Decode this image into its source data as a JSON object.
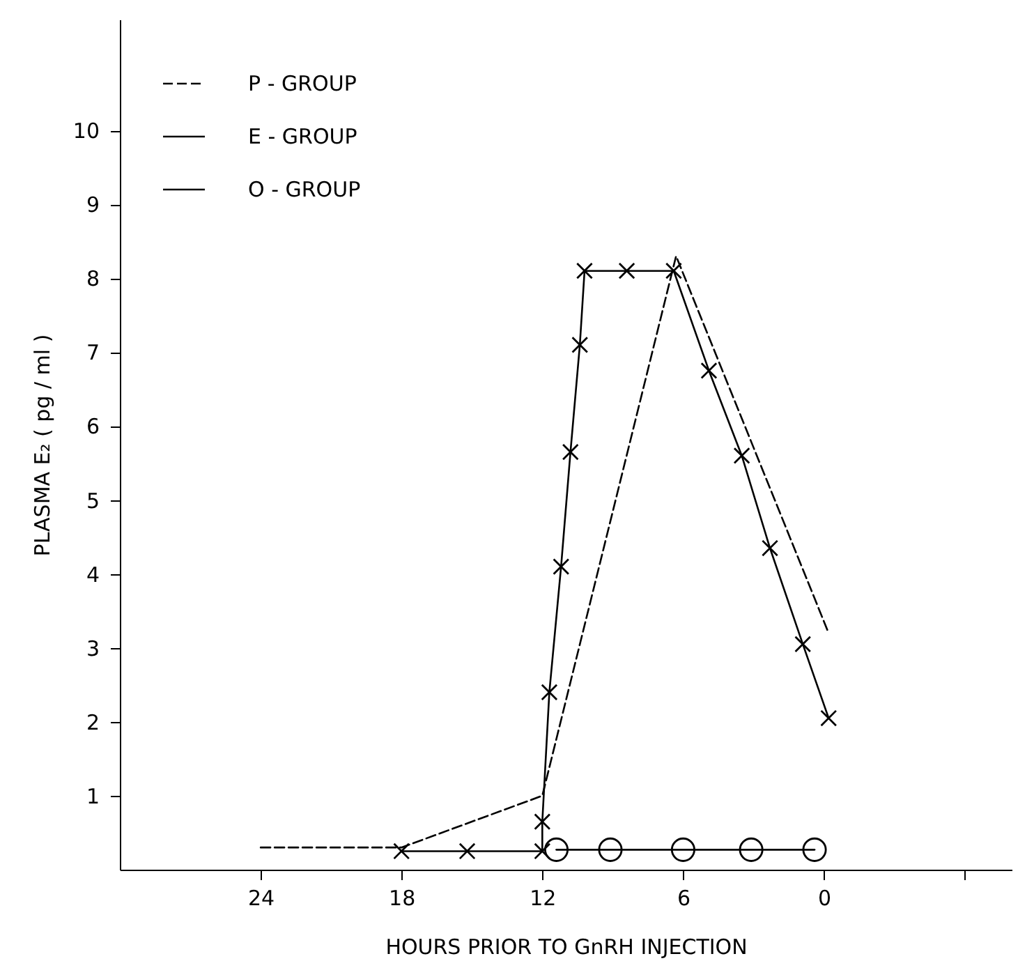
{
  "chart_data": {
    "type": "line",
    "xlabel": "HOURS PRIOR TO GnRH INJECTION",
    "ylabel": "PLASMA E₂ ( pg / ml )",
    "xlim": [
      30,
      -8
    ],
    "xticks": [
      24,
      18,
      12,
      6,
      0,
      {
        "value": -6,
        "label": null
      }
    ],
    "ylim": [
      0,
      11.5
    ],
    "yticks": [
      1,
      2,
      3,
      4,
      5,
      6,
      7,
      8,
      9,
      10
    ],
    "grid": false,
    "legend": "top left",
    "series": [
      {
        "name": "P - GROUP",
        "color": "#000000",
        "line_style": "dashed",
        "marker": "none",
        "x": [
          24,
          18,
          12,
          6.3,
          -0.2
        ],
        "values": [
          0.3,
          0.3,
          1.0,
          8.3,
          3.2
        ]
      },
      {
        "name": "E - GROUP",
        "color": "#000000",
        "line_style": "solid",
        "marker": "cross",
        "x": [
          18,
          15.2,
          12,
          12,
          11.7,
          11.2,
          10.8,
          10.4,
          10.2,
          8.4,
          6.4,
          4.9,
          3.5,
          2.3,
          0.9,
          -0.2
        ],
        "values": [
          0.25,
          0.25,
          0.25,
          0.65,
          2.4,
          4.1,
          5.65,
          7.1,
          8.1,
          8.1,
          8.1,
          6.75,
          5.6,
          4.35,
          3.05,
          2.05
        ]
      },
      {
        "name": "O - GROUP",
        "color": "#000000",
        "line_style": "solid",
        "marker": "circle",
        "x": [
          11.4,
          9.1,
          6,
          3.1,
          0.4
        ],
        "values": [
          0.27,
          0.27,
          0.27,
          0.27,
          0.27
        ]
      }
    ]
  }
}
